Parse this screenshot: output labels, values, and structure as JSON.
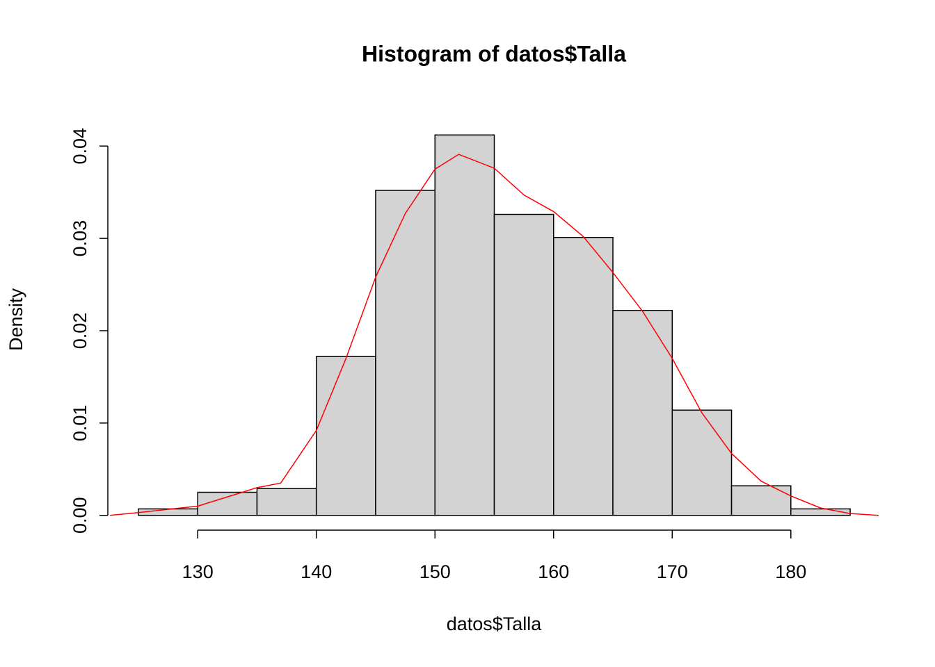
{
  "chart_data": {
    "type": "histogram",
    "title": "Histogram of datos$Talla",
    "x_label": "datos$Talla",
    "y_label": "Density",
    "bins": [
      125,
      130,
      135,
      140,
      145,
      150,
      155,
      160,
      165,
      170,
      175,
      180,
      185
    ],
    "values": [
      0.0007,
      0.0025,
      0.0029,
      0.0172,
      0.0352,
      0.0412,
      0.0326,
      0.0301,
      0.0222,
      0.0114,
      0.0032,
      0.0007
    ],
    "color": "#d3d3d3",
    "density": {
      "color": "#ff0000",
      "x": [
        122.6,
        125,
        130,
        135,
        137,
        140,
        142.5,
        145,
        147.5,
        150,
        152,
        155,
        157.5,
        160,
        162.5,
        165,
        167.5,
        170,
        172.5,
        175,
        177.5,
        180,
        182.5,
        185,
        187.4
      ],
      "values": [
        0,
        0.0003,
        0.001,
        0.003,
        0.0035,
        0.0092,
        0.017,
        0.0258,
        0.0327,
        0.0375,
        0.0391,
        0.0376,
        0.0347,
        0.0329,
        0.0302,
        0.0263,
        0.0221,
        0.017,
        0.0111,
        0.0067,
        0.0037,
        0.0021,
        0.0008,
        0.0002,
        0
      ]
    },
    "xlim": [
      122.6,
      187.4
    ],
    "ylim": [
      -0.0016,
      0.0428
    ],
    "xticks": [
      130,
      140,
      150,
      160,
      170,
      180
    ],
    "yticks": [
      {
        "value": 0,
        "label": "0.00"
      },
      {
        "value": 0.01,
        "label": "0.01"
      },
      {
        "value": 0.02,
        "label": "0.02"
      },
      {
        "value": 0.03,
        "label": "0.03"
      },
      {
        "value": 0.04,
        "label": "0.04"
      }
    ]
  }
}
